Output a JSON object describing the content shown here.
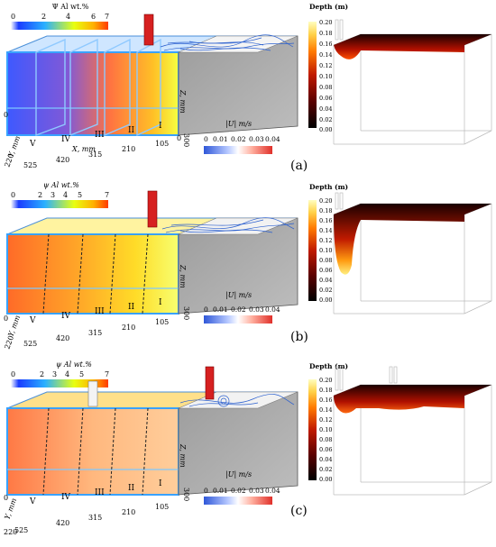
{
  "colors": {
    "psi_scale": [
      "#ffffff",
      "#1a3cff",
      "#2ab0ff",
      "#e8ff10",
      "#ffb000",
      "#ff3a00"
    ],
    "velocity_scale": [
      "#2f57d8",
      "#b6c8ff",
      "#ffffff",
      "#ffb0a0",
      "#e0302a"
    ],
    "depth_scale": [
      "#000000",
      "#5a0000",
      "#c01a00",
      "#ff7a00",
      "#ffd24a",
      "#fffec0"
    ],
    "tank_gray": "#a7a7a7"
  },
  "panels": [
    {
      "label": "(a)",
      "psi_title": "Ψ Al wt.%",
      "psi_ticks": [
        "0",
        "2",
        "4",
        "6",
        "7"
      ],
      "velocity_title": "|U|  m/s",
      "velocity_ticks": [
        "0",
        "0.01",
        "0.02",
        "0.03",
        "0.04"
      ],
      "sections": [
        "V",
        "IV",
        "III",
        "II",
        "I"
      ],
      "x_ticks": [
        "525",
        "420",
        "315",
        "210",
        "105",
        "0"
      ],
      "x_label": "X, mm",
      "y_label": "Y, mm",
      "y_tick": "220",
      "y_zero": "0",
      "z_label": "Z, mm",
      "z_tick": "300",
      "depth_title": "Depth (m)",
      "depth_ticks": [
        "0.20",
        "0.18",
        "0.16",
        "0.14",
        "0.12",
        "0.10",
        "0.08",
        "0.06",
        "0.04",
        "0.02",
        "0.00"
      ]
    },
    {
      "label": "(b)",
      "psi_title": "ψ Al wt.%",
      "psi_ticks": [
        "0",
        "2",
        "3",
        "4",
        "5",
        "7"
      ],
      "velocity_title": "|U|  m/s",
      "velocity_ticks": [
        "0",
        "0.01",
        "0.02",
        "0.03",
        "0.04"
      ],
      "sections": [
        "V",
        "IV",
        "III",
        "II",
        "I"
      ],
      "x_ticks": [
        "525",
        "420",
        "315",
        "210",
        "105"
      ],
      "y_label": "Y, mm",
      "y_tick": "220",
      "y_zero": "0",
      "z_label": "Z, mm",
      "z_tick": "300",
      "depth_title": "Depth (m)",
      "depth_ticks": [
        "0.20",
        "0.18",
        "0.16",
        "0.14",
        "0.12",
        "0.10",
        "0.08",
        "0.06",
        "0.04",
        "0.02",
        "0.00"
      ]
    },
    {
      "label": "(c)",
      "psi_title": "ψ Al wt.%",
      "psi_ticks": [
        "0",
        "2",
        "3",
        "4",
        "5",
        "7"
      ],
      "velocity_title": "|U|  m/s",
      "velocity_ticks": [
        "0",
        "0.01",
        "0.02",
        "0.03",
        "0.04"
      ],
      "sections": [
        "V",
        "IV",
        "III",
        "II",
        "I"
      ],
      "x_ticks": [
        "525",
        "420",
        "315",
        "210",
        "105"
      ],
      "y_label": "Y, mm",
      "y_tick": "220",
      "y_zero": "0",
      "z_label": "Z, mm",
      "z_tick": "300",
      "depth_title": "Depth (m)",
      "depth_ticks": [
        "0.20",
        "0.18",
        "0.16",
        "0.14",
        "0.12",
        "0.10",
        "0.08",
        "0.06",
        "0.04",
        "0.02",
        "0.00"
      ]
    }
  ]
}
